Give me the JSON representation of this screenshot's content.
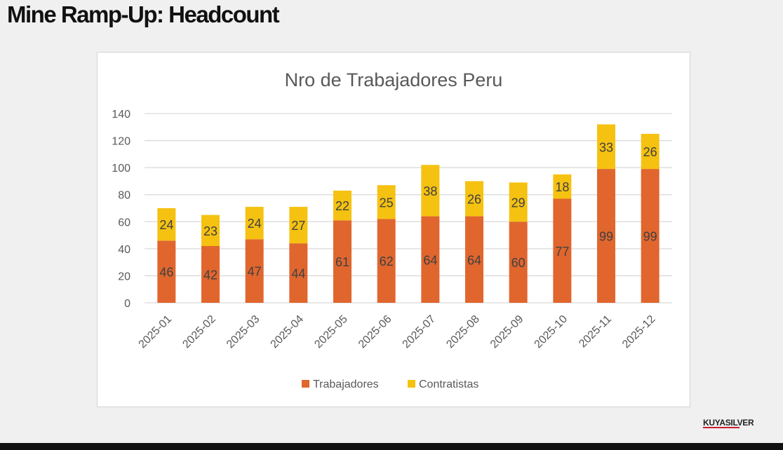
{
  "page": {
    "title": "Mine Ramp-Up: Headcount",
    "brand": "KUYASILVER"
  },
  "colors": {
    "trabajadores": "#E0662E",
    "contratistas": "#F5C211",
    "grid": "#D9D9D9",
    "text": "#595959"
  },
  "chart_data": {
    "type": "bar",
    "stacked": true,
    "title": "Nro de Trabajadores Peru",
    "categories": [
      "2025-01",
      "2025-02",
      "2025-03",
      "2025-04",
      "2025-05",
      "2025-06",
      "2025-07",
      "2025-08",
      "2025-09",
      "2025-10",
      "2025-11",
      "2025-12"
    ],
    "series": [
      {
        "name": "Trabajadores",
        "values": [
          46,
          42,
          47,
          44,
          61,
          62,
          64,
          64,
          60,
          77,
          99,
          99
        ]
      },
      {
        "name": "Contratistas",
        "values": [
          24,
          23,
          24,
          27,
          22,
          25,
          38,
          26,
          29,
          18,
          33,
          26
        ]
      }
    ],
    "y_ticks": [
      0,
      20,
      40,
      60,
      80,
      100,
      120,
      140
    ],
    "ylim": [
      0,
      140
    ],
    "grid": true,
    "legend_position": "bottom",
    "xlabel": "",
    "ylabel": ""
  }
}
